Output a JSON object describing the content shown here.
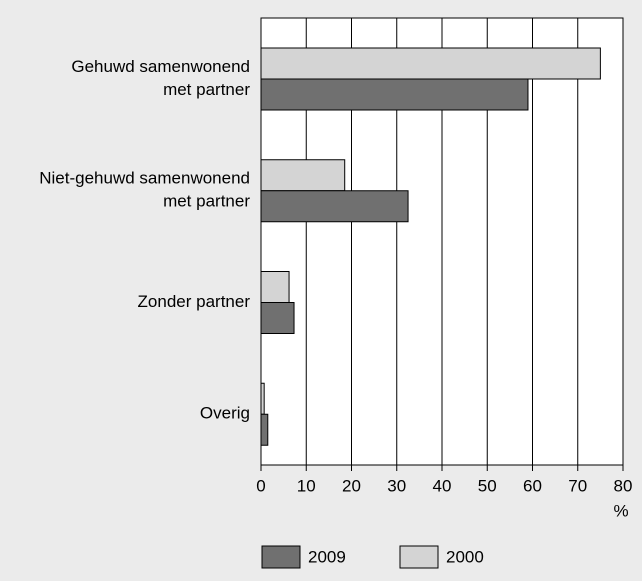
{
  "chart_data": {
    "type": "hbar",
    "categories": [
      [
        "Gehuwd samenwonend",
        "met partner"
      ],
      [
        "Niet-gehuwd samenwonend",
        "met partner"
      ],
      [
        "Zonder partner"
      ],
      [
        "Overig"
      ]
    ],
    "series": [
      {
        "name": "2000",
        "color": "#d4d4d4",
        "values": [
          75,
          18.5,
          6.2,
          0.7
        ]
      },
      {
        "name": "2009",
        "color": "#707070",
        "values": [
          59,
          32.5,
          7.3,
          1.5
        ]
      }
    ],
    "legend_order": [
      1,
      0
    ],
    "xlim": [
      0,
      80
    ],
    "xticks": [
      0,
      10,
      20,
      30,
      40,
      50,
      60,
      70,
      80
    ],
    "xlabel": "%",
    "grid": true
  }
}
